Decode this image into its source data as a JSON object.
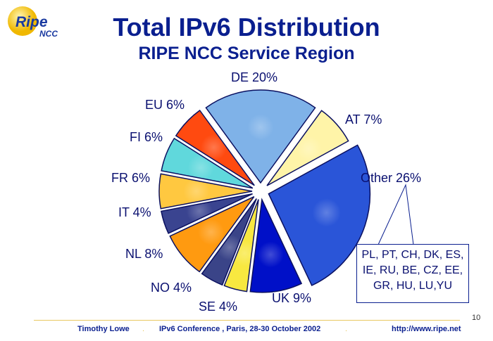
{
  "logo": {
    "text_main": "Ripe",
    "text_sub": "NCC"
  },
  "chart_data": {
    "type": "pie",
    "title": "Total IPv6 Distribution",
    "subtitle": "RIPE NCC Service Region",
    "categories": [
      "DE",
      "AT",
      "Other",
      "UK",
      "SE",
      "NO",
      "NL",
      "IT",
      "FR",
      "FI",
      "EU"
    ],
    "values": [
      20,
      7,
      26,
      9,
      4,
      4,
      8,
      4,
      6,
      6,
      6
    ],
    "labels": [
      "DE 20%",
      "AT 7%",
      "Other 26%",
      "UK 9%",
      "SE 4%",
      "NO 4%",
      "NL 8%",
      "IT 4%",
      "FR 6%",
      "FI 6%",
      "EU 6%"
    ],
    "colors": [
      "#7fb2e8",
      "#fff4a8",
      "#2a55d8",
      "#0010c8",
      "#f8e840",
      "#3a4488",
      "#ff9a10",
      "#3a4490",
      "#ffc840",
      "#60d8dc",
      "#ff4a10"
    ],
    "annotation": "PL, PT, CH, DK, ES, IE, RU, BE, CZ, EE, GR, HU, LU,YU"
  },
  "footer": {
    "author": "Timothy Lowe",
    "event": "IPv6 Conference , Paris, 28-30 October 2002",
    "url": "http://www.ripe.net",
    "separator": ".",
    "page": "10"
  }
}
